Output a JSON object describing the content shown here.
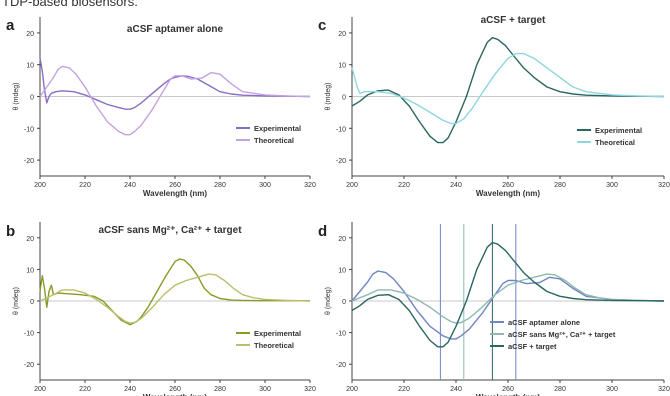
{
  "header_text": "TDP-based biosensors.",
  "colors": {
    "purple_dark": "#8a6cc4",
    "purple_light": "#c4a2e0",
    "olive_dark": "#8a9a28",
    "olive_light": "#bcbd6c",
    "teal_dark": "#2b6661",
    "teal_light": "#8fd6e0",
    "blue_grey": "#6f85c4",
    "axis": "#444444",
    "zero_line": "#c9c9c9"
  },
  "chart_data": [
    {
      "id": "a",
      "type": "line",
      "panel_label": "a",
      "title": "aCSF aptamer alone",
      "xlabel": "Wavelength (nm)",
      "ylabel": "θ (mdeg)",
      "xlim": [
        200,
        320
      ],
      "ylim": [
        -25,
        25
      ],
      "xticks": [
        200,
        220,
        240,
        260,
        280,
        300,
        320
      ],
      "yticks": [
        -20,
        -10,
        0,
        10,
        20
      ],
      "grid": false,
      "legend_position": "lower-right",
      "series": [
        {
          "name": "Experimental",
          "color": "#8a6cc4",
          "x": [
            200,
            201,
            202,
            203,
            204,
            205,
            207,
            210,
            215,
            220,
            225,
            230,
            235,
            238,
            240,
            242,
            245,
            250,
            255,
            258,
            260,
            263,
            266,
            270,
            275,
            280,
            285,
            290,
            300,
            310,
            320
          ],
          "y": [
            12,
            8,
            2,
            -2,
            0,
            1,
            1.5,
            1.8,
            1.5,
            0.5,
            -1,
            -2.5,
            -3.5,
            -4,
            -4,
            -3.5,
            -2,
            1,
            4,
            5.5,
            6,
            6.5,
            6.3,
            5.5,
            3.5,
            1.5,
            0.8,
            0.4,
            0.2,
            0.1,
            0
          ]
        },
        {
          "name": "Theoretical",
          "color": "#c4a2e0",
          "x": [
            200,
            203,
            206,
            208,
            210,
            213,
            216,
            220,
            225,
            230,
            235,
            238,
            240,
            242,
            245,
            250,
            255,
            258,
            260,
            263,
            267,
            272,
            276,
            280,
            285,
            290,
            300,
            310,
            320
          ],
          "y": [
            0,
            3,
            6,
            8.5,
            9.5,
            9,
            7,
            3,
            -3,
            -8,
            -11,
            -12,
            -12,
            -11,
            -9,
            -4,
            2,
            5.5,
            6.5,
            6.5,
            5.5,
            5.8,
            7.5,
            7,
            4,
            1.5,
            0.5,
            0.2,
            0
          ]
        }
      ]
    },
    {
      "id": "b",
      "type": "line",
      "panel_label": "b",
      "title": "aCSF sans Mg²⁺, Ca²⁺ + target",
      "xlabel": "Wavelength (nm)",
      "ylabel": "θ (mdeg)",
      "xlim": [
        200,
        320
      ],
      "ylim": [
        -25,
        25
      ],
      "xticks": [
        200,
        220,
        240,
        260,
        280,
        300,
        320
      ],
      "yticks": [
        -20,
        -10,
        0,
        10,
        20
      ],
      "grid": false,
      "legend_position": "lower-right",
      "series": [
        {
          "name": "Experimental",
          "color": "#8a9a28",
          "x": [
            200,
            201,
            202,
            203,
            204,
            205,
            206,
            208,
            212,
            218,
            224,
            228,
            232,
            236,
            240,
            243,
            245,
            248,
            252,
            256,
            260,
            262,
            264,
            267,
            270,
            273,
            276,
            280,
            285,
            290,
            300,
            310,
            320
          ],
          "y": [
            3,
            8,
            4,
            -2,
            3,
            5,
            2,
            2.5,
            2.3,
            2,
            1.5,
            0,
            -3,
            -6,
            -7.5,
            -6.5,
            -5,
            -2,
            3,
            8,
            12.5,
            13.3,
            13,
            11,
            8,
            4,
            2,
            0.8,
            0.3,
            0.2,
            0.1,
            0.1,
            0.1
          ]
        },
        {
          "name": "Theoretical",
          "color": "#bcbd6c",
          "x": [
            200,
            203,
            206,
            210,
            215,
            220,
            225,
            230,
            235,
            238,
            240,
            242,
            245,
            250,
            255,
            260,
            265,
            270,
            275,
            278,
            282,
            286,
            290,
            295,
            300,
            310,
            320
          ],
          "y": [
            0,
            1,
            2,
            3.5,
            3.5,
            2.5,
            0.5,
            -2,
            -5,
            -6.5,
            -7,
            -6.8,
            -5.5,
            -2,
            2,
            5,
            6.5,
            7.5,
            8.5,
            8.3,
            6.5,
            4,
            2,
            1,
            0.5,
            0.2,
            0
          ]
        }
      ]
    },
    {
      "id": "c",
      "type": "line",
      "panel_label": "c",
      "title": "aCSF + target",
      "xlabel": "Wavelength (nm)",
      "ylabel": "θ (mdeg)",
      "xlim": [
        200,
        320
      ],
      "ylim": [
        -25,
        25
      ],
      "xticks": [
        200,
        220,
        240,
        260,
        280,
        300,
        320
      ],
      "yticks": [
        -20,
        -10,
        0,
        10,
        20
      ],
      "grid": false,
      "legend_position": "lower-right",
      "series": [
        {
          "name": "Experimental",
          "color": "#2b6661",
          "x": [
            200,
            203,
            206,
            210,
            214,
            218,
            222,
            226,
            230,
            233,
            235,
            237,
            240,
            244,
            248,
            252,
            254,
            256,
            259,
            262,
            266,
            270,
            275,
            280,
            285,
            290,
            300,
            310,
            320
          ],
          "y": [
            -3,
            -1.5,
            0.5,
            1.8,
            2,
            0.5,
            -3,
            -8,
            -12.5,
            -14.5,
            -14.5,
            -13,
            -8,
            0,
            10,
            17,
            18.5,
            18,
            16,
            13,
            9,
            6,
            3,
            1.5,
            0.8,
            0.4,
            0.2,
            0.1,
            0
          ]
        },
        {
          "name": "Theoretical",
          "color": "#8fd6e0",
          "x": [
            200,
            201,
            202,
            203,
            205,
            210,
            215,
            220,
            225,
            230,
            235,
            238,
            240,
            243,
            246,
            250,
            255,
            260,
            263,
            266,
            270,
            275,
            280,
            285,
            290,
            300,
            310,
            320
          ],
          "y": [
            9,
            6,
            3,
            1,
            1.5,
            1.5,
            1,
            -0.5,
            -2.5,
            -5,
            -7.5,
            -8.5,
            -8.5,
            -7,
            -4,
            1,
            7,
            12,
            13.5,
            13.5,
            12,
            9,
            6,
            3,
            1.5,
            0.5,
            0.2,
            0
          ]
        }
      ]
    },
    {
      "id": "d",
      "type": "line",
      "panel_label": "d",
      "title": "",
      "xlabel": "Wavelength (nm)",
      "ylabel": "θ (mdeg)",
      "xlim": [
        200,
        320
      ],
      "ylim": [
        -25,
        25
      ],
      "xticks": [
        200,
        220,
        240,
        260,
        280,
        300,
        320
      ],
      "yticks": [
        -20,
        -10,
        0,
        10,
        20
      ],
      "grid": false,
      "legend_position": "lower-right",
      "vlines": [
        234,
        243,
        254,
        263
      ],
      "series": [
        {
          "name": "aCSF aptamer alone",
          "color": "#6f85c4",
          "x": [
            200,
            203,
            206,
            208,
            210,
            213,
            216,
            220,
            225,
            230,
            235,
            238,
            240,
            242,
            245,
            250,
            255,
            258,
            260,
            263,
            267,
            272,
            276,
            280,
            285,
            290,
            300,
            310,
            320
          ],
          "y": [
            0,
            3,
            6,
            8.5,
            9.5,
            9,
            7,
            3,
            -3,
            -8,
            -11,
            -12,
            -12,
            -11,
            -9,
            -4,
            2,
            5.5,
            6.5,
            6.5,
            5.5,
            5.8,
            7.5,
            7,
            4,
            1.5,
            0.5,
            0.2,
            0
          ]
        },
        {
          "name": "aCSF sans Mg²⁺, Ca²⁺ + target",
          "color": "#8fb8b3",
          "x": [
            200,
            203,
            206,
            210,
            215,
            220,
            225,
            230,
            235,
            238,
            240,
            242,
            245,
            250,
            255,
            260,
            265,
            270,
            275,
            278,
            282,
            286,
            290,
            295,
            300,
            310,
            320
          ],
          "y": [
            0,
            1,
            2,
            3.5,
            3.5,
            2.5,
            0.5,
            -2,
            -5,
            -6.5,
            -7,
            -6.8,
            -5.5,
            -2,
            2,
            5,
            6.5,
            7.5,
            8.5,
            8.3,
            6.5,
            4,
            2,
            1,
            0.5,
            0.2,
            0
          ]
        },
        {
          "name": "aCSF + target",
          "color": "#2b6661",
          "x": [
            200,
            203,
            206,
            210,
            214,
            218,
            222,
            226,
            230,
            233,
            235,
            237,
            240,
            244,
            248,
            252,
            254,
            256,
            259,
            262,
            266,
            270,
            275,
            280,
            285,
            290,
            300,
            310,
            320
          ],
          "y": [
            -3,
            -1.5,
            0.5,
            1.8,
            2,
            0.5,
            -3,
            -8,
            -12.5,
            -14.5,
            -14.5,
            -13,
            -8,
            0,
            10,
            17,
            18.5,
            18,
            16,
            13,
            9,
            6,
            3,
            1.5,
            0.8,
            0.4,
            0.2,
            0.1,
            0
          ]
        }
      ]
    }
  ]
}
